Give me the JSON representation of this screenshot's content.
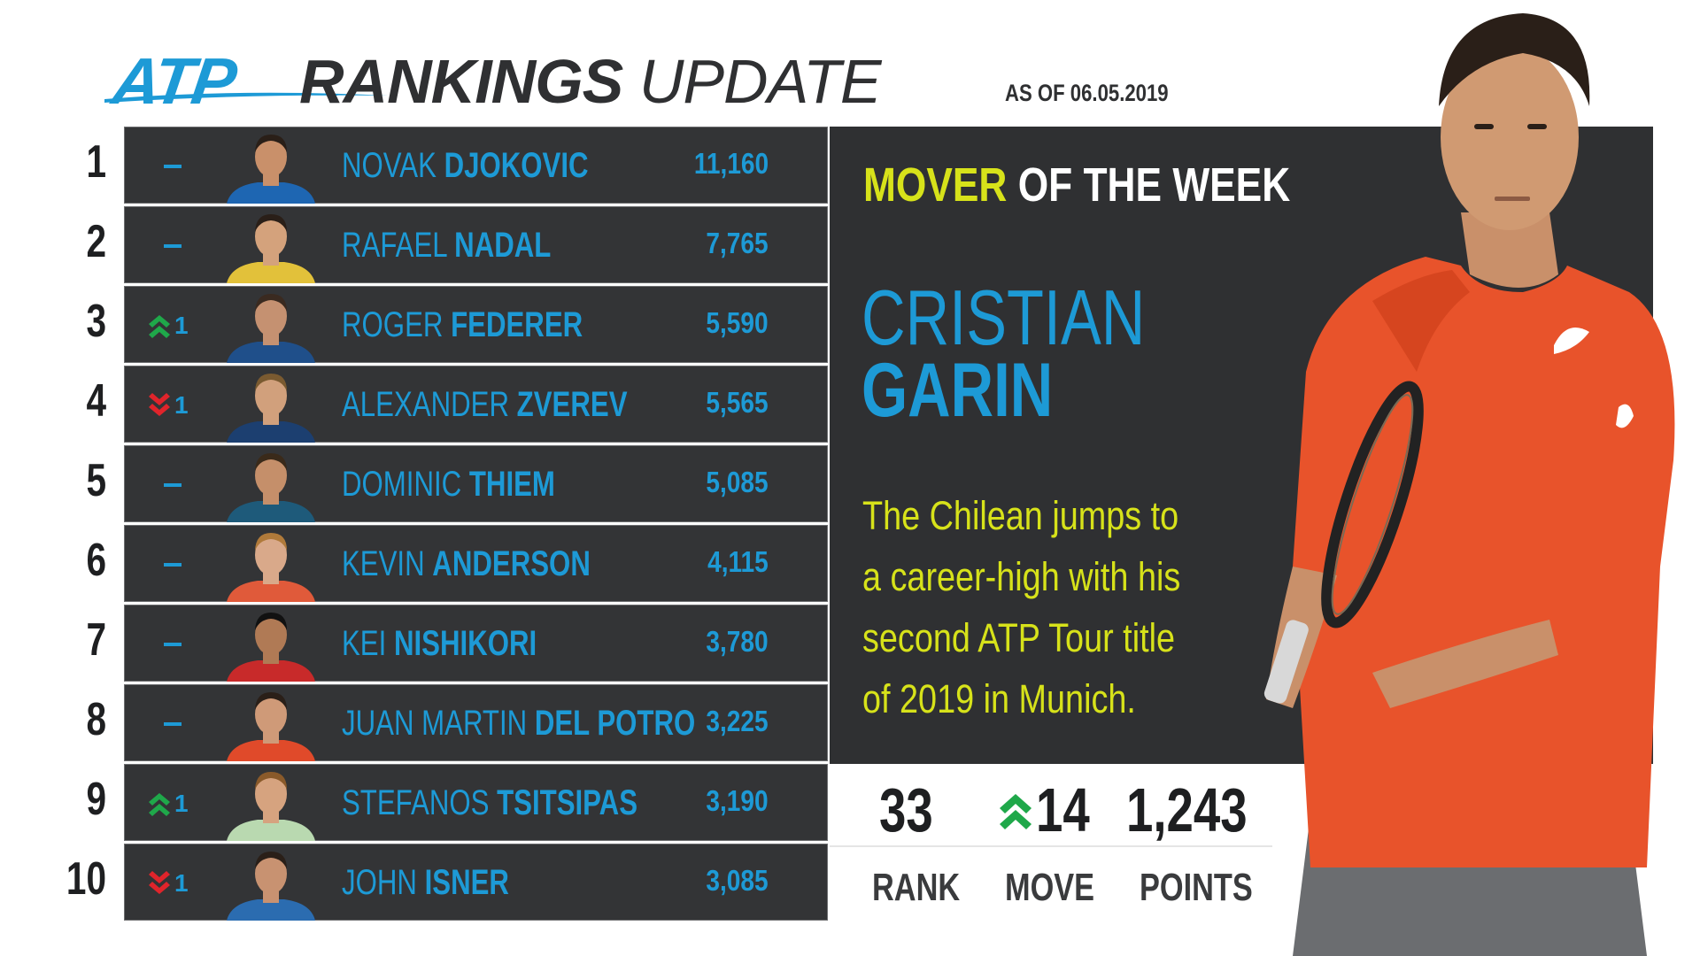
{
  "header": {
    "logo_text": "ATP",
    "title_bold": "RANKINGS",
    "title_light": "UPDATE",
    "as_of": "AS OF 06.05.2019"
  },
  "rankings": [
    {
      "rank": "1",
      "move": "",
      "direction": "none",
      "first": "NOVAK ",
      "last": "DJOKOVIC",
      "points": "11,160"
    },
    {
      "rank": "2",
      "move": "",
      "direction": "none",
      "first": "RAFAEL ",
      "last": "NADAL",
      "points": "7,765"
    },
    {
      "rank": "3",
      "move": "1",
      "direction": "up",
      "first": "ROGER ",
      "last": "FEDERER",
      "points": "5,590"
    },
    {
      "rank": "4",
      "move": "1",
      "direction": "down",
      "first": "ALEXANDER ",
      "last": "ZVEREV",
      "points": "5,565"
    },
    {
      "rank": "5",
      "move": "",
      "direction": "none",
      "first": "DOMINIC ",
      "last": "THIEM",
      "points": "5,085"
    },
    {
      "rank": "6",
      "move": "",
      "direction": "none",
      "first": "KEVIN ",
      "last": "ANDERSON",
      "points": "4,115"
    },
    {
      "rank": "7",
      "move": "",
      "direction": "none",
      "first": "KEI ",
      "last": "NISHIKORI",
      "points": "3,780"
    },
    {
      "rank": "8",
      "move": "",
      "direction": "none",
      "first": "JUAN MARTIN ",
      "last": "DEL POTRO",
      "points": "3,225"
    },
    {
      "rank": "9",
      "move": "1",
      "direction": "up",
      "first": "STEFANOS ",
      "last": "TSITSIPAS",
      "points": "3,190"
    },
    {
      "rank": "10",
      "move": "1",
      "direction": "down",
      "first": "JOHN ",
      "last": "ISNER",
      "points": "3,085"
    }
  ],
  "mover": {
    "title_highlight": "MOVER",
    "title_rest": " OF THE WEEK",
    "first_name": "CRISTIAN",
    "last_name": "GARIN",
    "description": "The Chilean jumps to a career-high with his second ATP Tour title of 2019 in Munich.",
    "rank_value": "33",
    "move_value": "14",
    "points_value": "1,243",
    "rank_label": "RANK",
    "move_label": "MOVE",
    "points_label": "POINTS"
  },
  "colors": {
    "accent_blue": "#1d9ad6",
    "highlight_yellow": "#d7e21a",
    "up_green": "#1fa84a",
    "down_red": "#e0242b",
    "panel_dark": "#2f3032"
  }
}
